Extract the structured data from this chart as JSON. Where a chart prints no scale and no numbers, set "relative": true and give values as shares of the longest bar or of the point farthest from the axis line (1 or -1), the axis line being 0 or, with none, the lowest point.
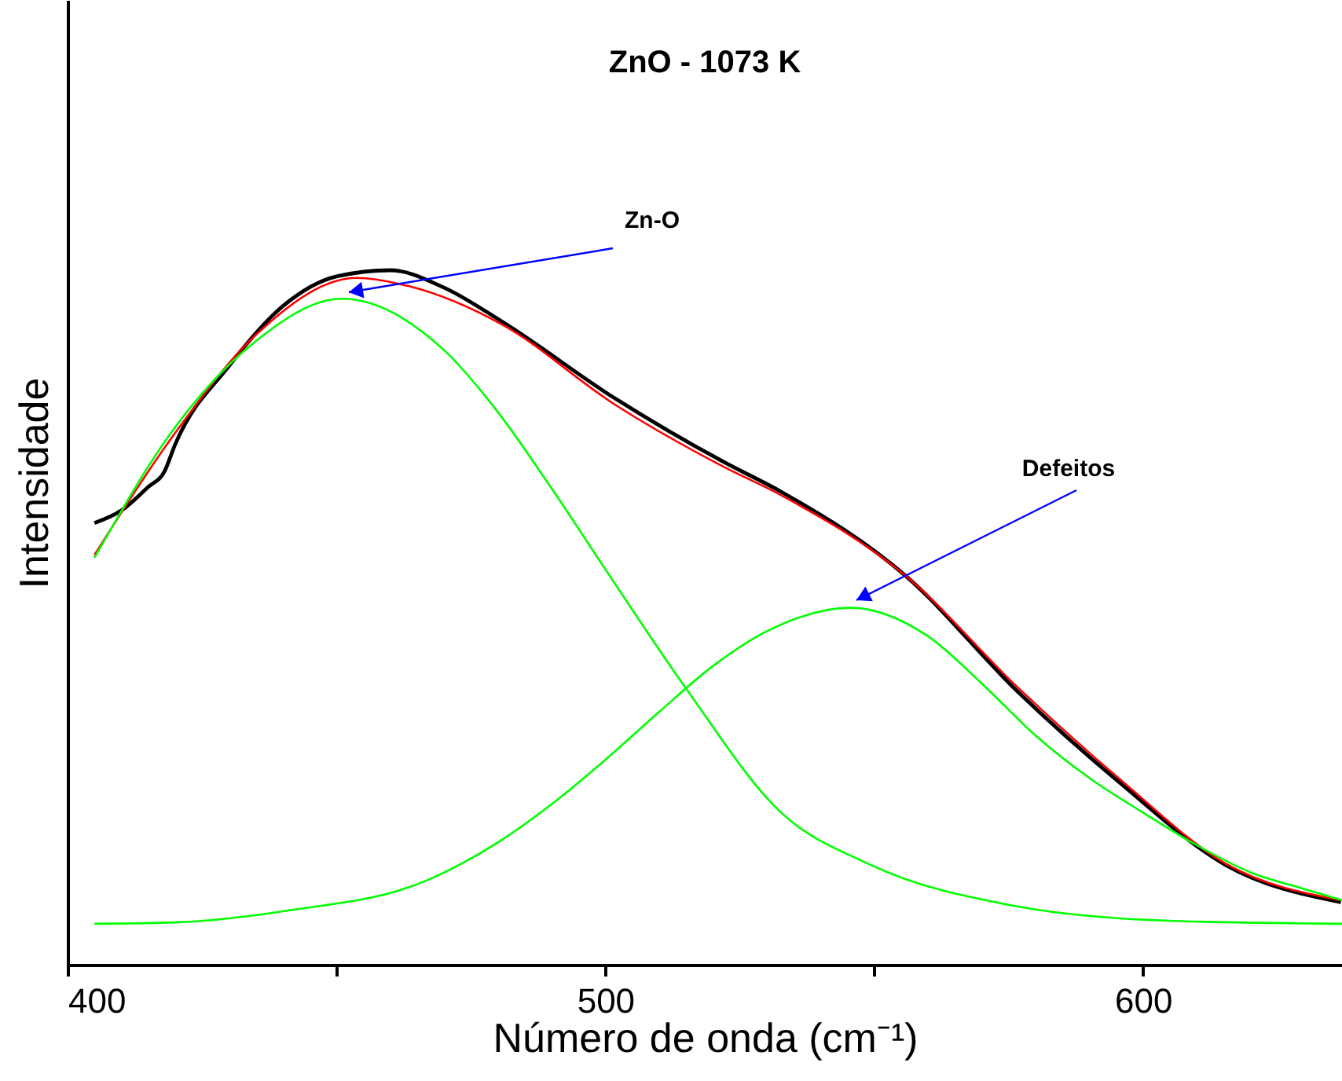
{
  "chart_data": {
    "type": "line",
    "title": "ZnO - 1073 K",
    "xlabel": "Número de onda (cm⁻¹)",
    "ylabel": "Intensidade",
    "relative": true,
    "legend": false,
    "grid": false,
    "marker": "none",
    "line_style": "solid",
    "xlim": [
      400,
      637
    ],
    "xticks": [
      400,
      {
        "value": 450,
        "label": null
      },
      500,
      {
        "value": 550,
        "label": null
      },
      600
    ],
    "series": [
      {
        "color": "#000000",
        "x": [
          405,
          410,
          415,
          418,
          420,
          430,
          440,
          450,
          460,
          470,
          481,
          501.5,
          522,
          532.7,
          556,
          576.6,
          596,
          615.5,
          636.8
        ],
        "values": [
          0.636,
          0.654,
          0.688,
          0.71,
          0.749,
          0.862,
          0.948,
          0.991,
          1.0,
          0.975,
          0.925,
          0.817,
          0.724,
          0.681,
          0.559,
          0.394,
          0.26,
          0.143,
          0.09
        ]
      },
      {
        "color": "#ff0000",
        "x": [
          405,
          420.5,
          435,
          453.8,
          463.5,
          481,
          501.5,
          522,
          532.7,
          556,
          576.6,
          596,
          615.5,
          636.8
        ],
        "values": [
          0.59,
          0.771,
          0.907,
          0.989,
          0.977,
          0.921,
          0.808,
          0.717,
          0.676,
          0.559,
          0.4,
          0.265,
          0.145,
          0.093
        ]
      },
      {
        "color": "#00ff00",
        "x": [
          405,
          420,
          435,
          451,
          470,
          480,
          490,
          501.5,
          515,
          532.7,
          549,
          576.6,
          605.8,
          637
        ],
        "values": [
          0.586,
          0.774,
          0.898,
          0.959,
          0.885,
          0.796,
          0.686,
          0.552,
          0.398,
          0.219,
          0.145,
          0.084,
          0.063,
          0.059
        ]
      },
      {
        "color": "#00ff00",
        "x": [
          405,
          420,
          440,
          467,
          480,
          490,
          498.5,
          510,
          520,
          530,
          545.6,
          560,
          570,
          580,
          590,
          600,
          610,
          620,
          630,
          637
        ],
        "values": [
          0.059,
          0.061,
          0.077,
          0.122,
          0.176,
          0.231,
          0.285,
          0.364,
          0.43,
          0.48,
          0.514,
          0.473,
          0.405,
          0.33,
          0.269,
          0.219,
          0.172,
          0.133,
          0.109,
          0.093
        ]
      }
    ],
    "annotations": [
      "Zn-O",
      "Defeitos"
    ]
  }
}
